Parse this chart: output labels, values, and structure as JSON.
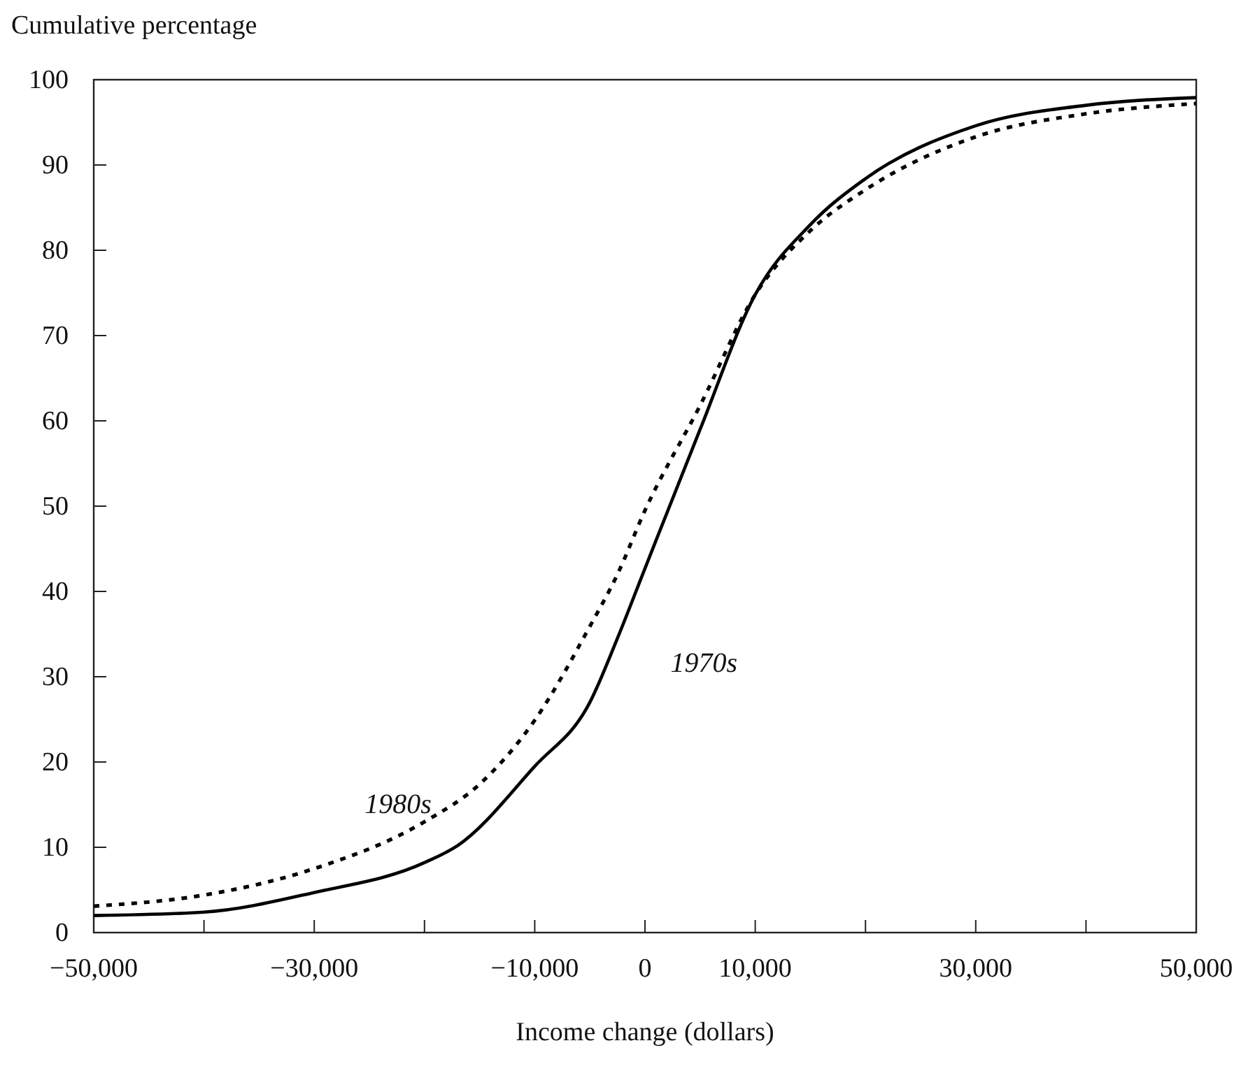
{
  "chart_data": {
    "type": "line",
    "ylabel": "Cumulative percentage",
    "xlabel": "Income change (dollars)",
    "xlim": [
      -50000,
      50000
    ],
    "xticks": [
      {
        "value": -50000,
        "label": "−50,000"
      },
      {
        "value": -40000,
        "label": null
      },
      {
        "value": -30000,
        "label": "−30,000"
      },
      {
        "value": -20000,
        "label": null
      },
      {
        "value": -10000,
        "label": "−10,000"
      },
      0,
      {
        "value": 10000,
        "label": "10,000"
      },
      {
        "value": 20000,
        "label": null
      },
      {
        "value": 30000,
        "label": "30,000"
      },
      {
        "value": 40000,
        "label": null
      },
      {
        "value": 50000,
        "label": "50,000"
      }
    ],
    "ylim": [
      0,
      100
    ],
    "yticks": [
      0,
      10,
      20,
      30,
      40,
      50,
      60,
      70,
      80,
      90,
      100
    ],
    "grid": false,
    "legend": false,
    "marker": "none",
    "series": [
      {
        "name": "1970s",
        "color": "#000000",
        "line_style": "solid",
        "x": [
          -50000,
          -40000,
          -30000,
          -20000,
          -17000,
          -10000,
          -5000,
          -2500,
          0,
          5000,
          10000,
          15000,
          20000,
          30000,
          40000,
          50000
        ],
        "values": [
          2.0,
          2.4,
          4.7,
          8.2,
          10.2,
          19.5,
          27,
          34.5,
          42.7,
          59,
          74.8,
          83,
          88.4,
          94.6,
          97,
          97.9
        ]
      },
      {
        "name": "1980s",
        "color": "#000000",
        "line_style": "dotted",
        "x": [
          -50000,
          -40000,
          -30000,
          -20000,
          -15000,
          -10000,
          -5000,
          -2500,
          0,
          5000,
          10000,
          15000,
          20000,
          30000,
          40000,
          50000
        ],
        "values": [
          3.1,
          4.4,
          7.5,
          13,
          17.4,
          24.9,
          35.9,
          42,
          49.5,
          61.8,
          74.8,
          82.3,
          87.1,
          93.3,
          96,
          97.2
        ]
      }
    ]
  }
}
